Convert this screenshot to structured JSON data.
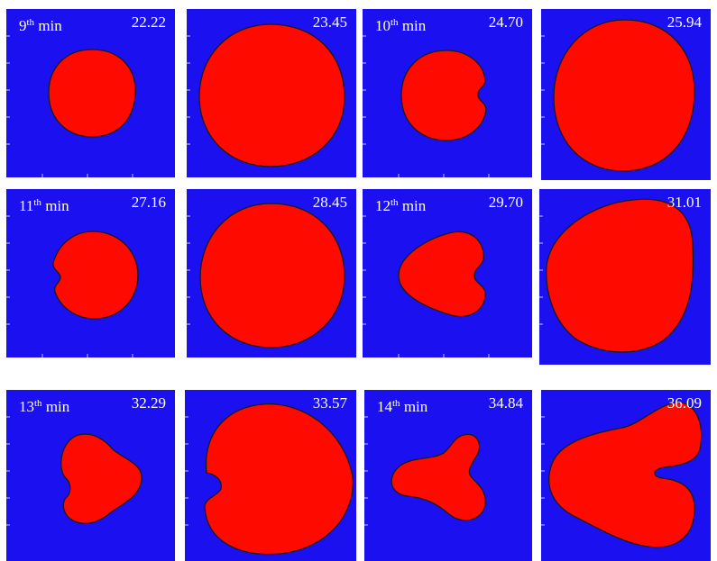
{
  "panels": [
    {
      "minute": "9",
      "suffix": "th",
      "unit": "min",
      "value": "22.22"
    },
    {
      "minute": "",
      "suffix": "",
      "unit": "",
      "value": "23.45"
    },
    {
      "minute": "10",
      "suffix": "th",
      "unit": "min",
      "value": "24.70"
    },
    {
      "minute": "",
      "suffix": "",
      "unit": "",
      "value": "25.94"
    },
    {
      "minute": "11",
      "suffix": "th",
      "unit": "min",
      "value": "27.16"
    },
    {
      "minute": "",
      "suffix": "",
      "unit": "",
      "value": "28.45"
    },
    {
      "minute": "12",
      "suffix": "th",
      "unit": "min",
      "value": "29.70"
    },
    {
      "minute": "",
      "suffix": "",
      "unit": "",
      "value": "31.01"
    },
    {
      "minute": "13",
      "suffix": "th",
      "unit": "min",
      "value": "32.29"
    },
    {
      "minute": "",
      "suffix": "",
      "unit": "",
      "value": "33.57"
    },
    {
      "minute": "14",
      "suffix": "th",
      "unit": "min",
      "value": "34.84"
    },
    {
      "minute": "",
      "suffix": "",
      "unit": "",
      "value": "36.09"
    }
  ],
  "colors": {
    "background": "#1a10f0",
    "shape": "#ff0a00",
    "outline": "#1a1a1a",
    "label": "#ffffff"
  }
}
